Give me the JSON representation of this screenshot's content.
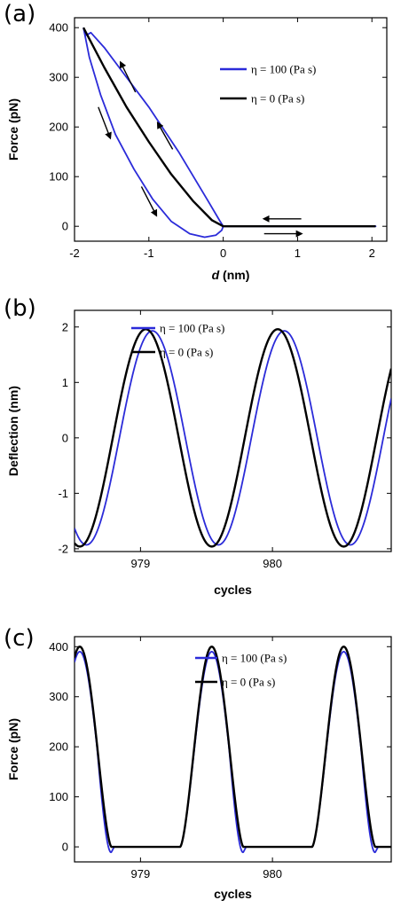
{
  "chart_data": [
    {
      "panel": "(a)",
      "type": "line",
      "xlabel_var": "d",
      "xlabel_unit": " (nm)",
      "ylabel": "Force (pN)",
      "xlim": [
        -2,
        2.2
      ],
      "ylim": [
        -30,
        420
      ],
      "xticks": [
        -2,
        -1,
        0,
        1,
        2
      ],
      "yticks": [
        0,
        100,
        200,
        300,
        400
      ],
      "legend": [
        {
          "label": "η = 100 (Pa s)",
          "color": "#2b2bd9"
        },
        {
          "label": "η = 0 (Pa s)",
          "color": "#000000"
        }
      ],
      "series": [
        {
          "name": "η = 100 (Pa s)",
          "color": "#2b2bd9",
          "x": [
            -1.88,
            -1.84,
            -1.78,
            -1.6,
            -1.4,
            -1.2,
            -1.0,
            -0.8,
            -0.6,
            -0.4,
            -0.2,
            -0.05,
            0.0,
            1.0,
            2.05,
            1.0,
            0.0,
            -0.02,
            -0.1,
            -0.25,
            -0.45,
            -0.7,
            -0.95,
            -1.2,
            -1.45,
            -1.65,
            -1.8,
            -1.88
          ],
          "y": [
            400,
            385,
            390,
            360,
            320,
            280,
            240,
            195,
            150,
            100,
            50,
            12,
            0,
            0,
            0,
            0,
            0,
            -8,
            -18,
            -22,
            -15,
            10,
            55,
            115,
            185,
            265,
            340,
            400
          ]
        },
        {
          "name": "η = 0 (Pa s)",
          "color": "#000000",
          "x": [
            -1.88,
            -1.6,
            -1.3,
            -1.0,
            -0.7,
            -0.4,
            -0.15,
            0.0,
            1.0,
            2.05
          ],
          "y": [
            400,
            320,
            240,
            170,
            105,
            50,
            12,
            0,
            0,
            0
          ]
        }
      ],
      "arrows": [
        {
          "x1": -1.18,
          "y1": 270,
          "x2": -1.38,
          "y2": 330
        },
        {
          "x1": -0.68,
          "y1": 155,
          "x2": -0.88,
          "y2": 208
        },
        {
          "x1": -1.68,
          "y1": 240,
          "x2": -1.52,
          "y2": 178
        },
        {
          "x1": -1.1,
          "y1": 80,
          "x2": -0.9,
          "y2": 22
        },
        {
          "x1": 1.05,
          "y1": 15,
          "x2": 0.55,
          "y2": 15
        },
        {
          "x1": 0.55,
          "y1": -15,
          "x2": 1.05,
          "y2": -15
        }
      ]
    },
    {
      "panel": "(b)",
      "type": "line",
      "xlabel": "cycles",
      "ylabel": "Deflection (nm)",
      "xlim": [
        978.5,
        980.9
      ],
      "ylim": [
        -2.05,
        2.3
      ],
      "xticks": [
        979,
        980
      ],
      "yticks": [
        -2,
        -1,
        0,
        1,
        2
      ],
      "legend": [
        {
          "label": "η = 100 (Pa s)",
          "color": "#2b2bd9"
        },
        {
          "label": "η = 0 (Pa s)",
          "color": "#000000"
        }
      ],
      "series": [
        {
          "name": "η = 100 (Pa s)",
          "color": "#2b2bd9",
          "amplitude": 1.93,
          "peak_shift": 0.05
        },
        {
          "name": "η = 0 (Pa s)",
          "color": "#000000",
          "amplitude": 1.96,
          "peak_shift": 0.0
        }
      ]
    },
    {
      "panel": "(c)",
      "type": "line",
      "xlabel": "cycles",
      "ylabel": "Force (pN)",
      "xlim": [
        978.5,
        980.9
      ],
      "ylim": [
        -30,
        420
      ],
      "xticks": [
        979,
        980
      ],
      "yticks": [
        0,
        100,
        200,
        300,
        400
      ],
      "legend": [
        {
          "label": "η = 100 (Pa s)",
          "color": "#2b2bd9"
        },
        {
          "label": "η = 0 (Pa s)",
          "color": "#000000"
        }
      ],
      "series": [
        {
          "name": "η = 100 (Pa s)",
          "color": "#2b2bd9",
          "peak": 390,
          "undershoot": -22
        },
        {
          "name": "η = 0 (Pa s)",
          "color": "#000000",
          "peak": 400,
          "undershoot": 0
        }
      ]
    }
  ]
}
